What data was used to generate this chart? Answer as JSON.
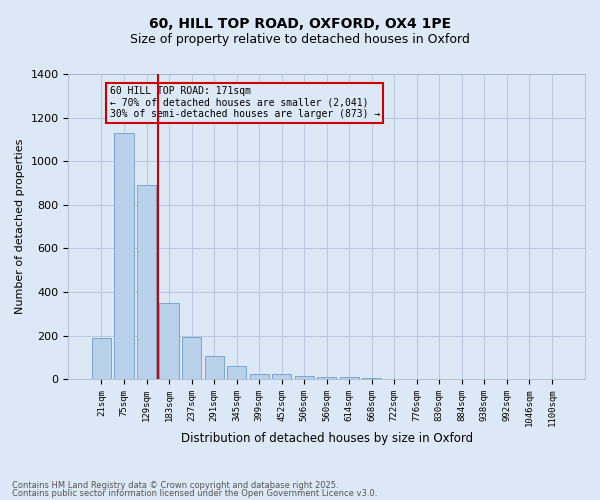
{
  "title_line1": "60, HILL TOP ROAD, OXFORD, OX4 1PE",
  "title_line2": "Size of property relative to detached houses in Oxford",
  "xlabel": "Distribution of detached houses by size in Oxford",
  "ylabel": "Number of detached properties",
  "bar_color": "#b8d0ea",
  "bar_edge_color": "#6090c0",
  "background_color": "#dce8f5",
  "grid_color": "#b8c8dc",
  "vline_color": "#cc0000",
  "vline_x": 2.5,
  "annotation_text": "60 HILL TOP ROAD: 171sqm\n← 70% of detached houses are smaller (2,041)\n30% of semi-detached houses are larger (873) →",
  "categories": [
    "21sqm",
    "75sqm",
    "129sqm",
    "183sqm",
    "237sqm",
    "291sqm",
    "345sqm",
    "399sqm",
    "452sqm",
    "506sqm",
    "560sqm",
    "614sqm",
    "668sqm",
    "722sqm",
    "776sqm",
    "830sqm",
    "884sqm",
    "938sqm",
    "992sqm",
    "1046sqm",
    "1100sqm"
  ],
  "values": [
    190,
    1130,
    890,
    350,
    195,
    105,
    62,
    25,
    22,
    13,
    8,
    10,
    5,
    0,
    0,
    0,
    0,
    0,
    0,
    0,
    0
  ],
  "ylim": [
    0,
    1400
  ],
  "yticks": [
    0,
    200,
    400,
    600,
    800,
    1000,
    1200,
    1400
  ],
  "footer_line1": "Contains HM Land Registry data © Crown copyright and database right 2025.",
  "footer_line2": "Contains public sector information licensed under the Open Government Licence v3.0."
}
